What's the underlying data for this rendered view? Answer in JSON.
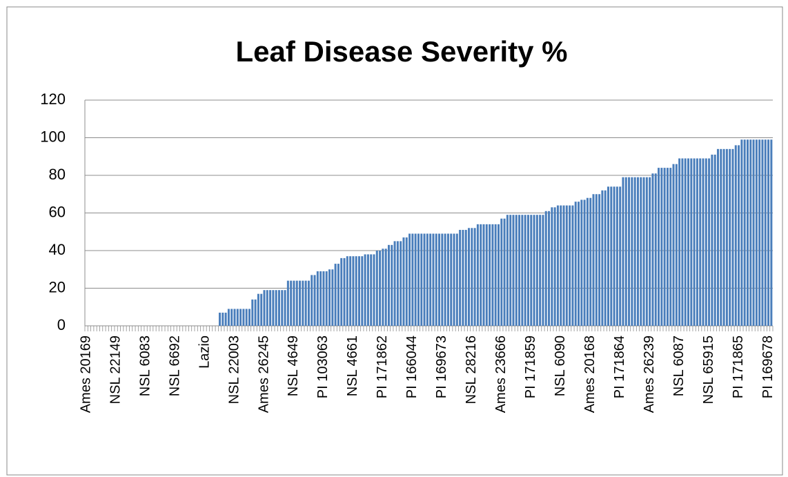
{
  "chart_data": {
    "type": "bar",
    "title": "Leaf Disease Severity %",
    "categories": [
      "Ames 20169",
      null,
      null,
      null,
      null,
      null,
      null,
      null,
      null,
      null,
      "NSL 22149",
      null,
      null,
      null,
      null,
      null,
      null,
      null,
      null,
      null,
      "NSL 6083",
      null,
      null,
      null,
      null,
      null,
      null,
      null,
      null,
      null,
      "NSL 6692",
      null,
      null,
      null,
      null,
      null,
      null,
      null,
      null,
      null,
      "Lazio",
      null,
      null,
      null,
      null,
      null,
      null,
      null,
      null,
      null,
      "NSL 22003",
      null,
      null,
      null,
      null,
      null,
      null,
      null,
      null,
      null,
      "Ames 26245",
      null,
      null,
      null,
      null,
      null,
      null,
      null,
      null,
      null,
      "NSL 4649",
      null,
      null,
      null,
      null,
      null,
      null,
      null,
      null,
      null,
      "PI 103063",
      null,
      null,
      null,
      null,
      null,
      null,
      null,
      null,
      null,
      "NSL 4661",
      null,
      null,
      null,
      null,
      null,
      null,
      null,
      null,
      null,
      "PI 171862",
      null,
      null,
      null,
      null,
      null,
      null,
      null,
      null,
      null,
      "PI 166044",
      null,
      null,
      null,
      null,
      null,
      null,
      null,
      null,
      null,
      "PI 169673",
      null,
      null,
      null,
      null,
      null,
      null,
      null,
      null,
      null,
      "NSL 28216",
      null,
      null,
      null,
      null,
      null,
      null,
      null,
      null,
      null,
      "Ames 23666",
      null,
      null,
      null,
      null,
      null,
      null,
      null,
      null,
      null,
      "PI 171859",
      null,
      null,
      null,
      null,
      null,
      null,
      null,
      null,
      null,
      "NSL 6090",
      null,
      null,
      null,
      null,
      null,
      null,
      null,
      null,
      null,
      "Ames 20168",
      null,
      null,
      null,
      null,
      null,
      null,
      null,
      null,
      null,
      "PI 171864",
      null,
      null,
      null,
      null,
      null,
      null,
      null,
      null,
      null,
      "Ames 26239",
      null,
      null,
      null,
      null,
      null,
      null,
      null,
      null,
      null,
      "NSL 6087",
      null,
      null,
      null,
      null,
      null,
      null,
      null,
      null,
      null,
      "NSL 65915",
      null,
      null,
      null,
      null,
      null,
      null,
      null,
      null,
      null,
      "PI 171865",
      null,
      null,
      null,
      null,
      null,
      null,
      null,
      null,
      null,
      "PI 169678",
      null
    ],
    "values": [
      0,
      0,
      0,
      0,
      0,
      0,
      0,
      0,
      0,
      0,
      0,
      0,
      0,
      0,
      0,
      0,
      0,
      0,
      0,
      0,
      0,
      0,
      0,
      0,
      0,
      0,
      0,
      0,
      0,
      0,
      0,
      0,
      0,
      0,
      0,
      0,
      0,
      0,
      0,
      0,
      0,
      0,
      0,
      0,
      0,
      7,
      7,
      7,
      9,
      9,
      9,
      9,
      9,
      9,
      9,
      9,
      14,
      14,
      17,
      17,
      19,
      19,
      19,
      19,
      19,
      19,
      19,
      19,
      24,
      24,
      24,
      24,
      24,
      24,
      24,
      24,
      27,
      27,
      29,
      29,
      29,
      29,
      30,
      30,
      33,
      33,
      36,
      36,
      37,
      37,
      37,
      37,
      37,
      37,
      38,
      38,
      38,
      38,
      40,
      40,
      41,
      41,
      43,
      43,
      45,
      45,
      45,
      47,
      47,
      49,
      49,
      49,
      49,
      49,
      49,
      49,
      49,
      49,
      49,
      49,
      49,
      49,
      49,
      49,
      49,
      49,
      51,
      51,
      51,
      52,
      52,
      52,
      54,
      54,
      54,
      54,
      54,
      54,
      54,
      54,
      57,
      57,
      59,
      59,
      59,
      59,
      59,
      59,
      59,
      59,
      59,
      59,
      59,
      59,
      59,
      61,
      61,
      63,
      63,
      64,
      64,
      64,
      64,
      64,
      64,
      66,
      66,
      67,
      67,
      68,
      68,
      70,
      70,
      70,
      72,
      72,
      74,
      74,
      74,
      74,
      74,
      79,
      79,
      79,
      79,
      79,
      79,
      79,
      79,
      79,
      79,
      81,
      81,
      84,
      84,
      84,
      84,
      84,
      86,
      86,
      89,
      89,
      89,
      89,
      89,
      89,
      89,
      89,
      89,
      89,
      89,
      91,
      91,
      94,
      94,
      94,
      94,
      94,
      94,
      96,
      96,
      99,
      99,
      99,
      99,
      99,
      99,
      99,
      99,
      99,
      99,
      99
    ],
    "color": "#4a7ebb",
    "ylim": [
      0,
      120
    ],
    "yticks": [
      0,
      20,
      40,
      60,
      80,
      100,
      120
    ],
    "grid": true
  }
}
